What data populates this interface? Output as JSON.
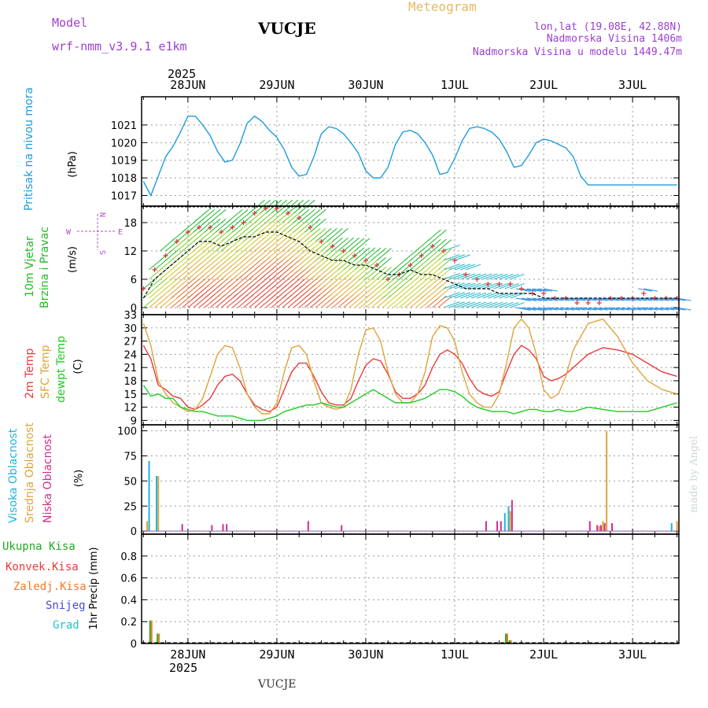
{
  "header": {
    "model_label": "Model",
    "model_name": "wrf-nmm_v3.9.1  e1km",
    "station": "VUCJE",
    "meteogram_title": "Meteogram",
    "lonlat": "lon,lat (19.08E, 42.88N)",
    "elevation": "Nadmorska Visina 1406m",
    "model_elevation": "Nadmorska Visina u modelu 1449.47m",
    "footer_station": "VUCJE",
    "credit": "made by Angel"
  },
  "colors": {
    "pressure": "#1e9be0",
    "temp2m": "#e83b3b",
    "sfc": "#e0a33a",
    "dewpt": "#22cc22",
    "high_cloud": "#1eb4e0",
    "mid_cloud": "#e0a33a",
    "low_cloud": "#d42c8a",
    "total_precip": "#22aa22",
    "conv_precip": "#e83b3b",
    "freezing": "#f07a2a",
    "snow": "#4848d8",
    "hail": "#22c4c4",
    "model": "#9b3fd0",
    "meteogram": "#e8b860",
    "wind_label": "#22bb22",
    "compass": "#b050d0"
  },
  "chart_data": [
    {
      "panel": "pressure",
      "type": "line",
      "label": "Pritisak na nivou mora",
      "unit": "(hPa)",
      "ylim": [
        1016.4,
        1022.6
      ],
      "yticks": [
        1017,
        1018,
        1019,
        1020,
        1021
      ],
      "x": [
        0,
        2,
        4,
        6,
        8,
        10,
        12,
        14,
        16,
        18,
        20,
        22,
        24,
        26,
        28,
        30,
        32,
        34,
        36,
        38,
        40,
        42,
        44,
        46,
        48,
        50,
        52,
        54,
        56,
        58,
        60,
        62,
        64,
        66,
        68,
        70,
        72,
        74,
        76,
        78,
        80,
        82,
        84,
        86,
        88,
        90,
        92,
        94,
        96,
        98,
        100,
        102,
        104,
        106,
        108,
        110,
        112,
        114,
        116,
        118,
        120,
        122,
        124,
        126,
        128,
        130,
        132,
        134,
        136,
        138,
        140,
        142,
        144
      ],
      "series": [
        {
          "values": [
            1017.8,
            1017.0,
            1018.1,
            1019.2,
            1019.8,
            1020.6,
            1021.5,
            1021.5,
            1021.0,
            1020.4,
            1019.5,
            1018.9,
            1019.0,
            1019.9,
            1021.1,
            1021.5,
            1021.2,
            1020.7,
            1020.3,
            1019.6,
            1018.6,
            1018.1,
            1018.2,
            1019.2,
            1020.5,
            1020.9,
            1020.8,
            1020.5,
            1020.0,
            1019.4,
            1018.4,
            1018.0,
            1018.0,
            1018.6,
            1019.9,
            1020.6,
            1020.7,
            1020.5,
            1020.0,
            1019.3,
            1018.2,
            1018.3,
            1019.1,
            1020.1,
            1020.8,
            1020.9,
            1020.8,
            1020.6,
            1020.2,
            1019.5,
            1018.6,
            1018.7,
            1019.3,
            1020.0,
            1020.2,
            1020.1,
            1019.9,
            1019.7,
            1019.2,
            1018.1,
            1017.6,
            1017.6,
            1017.6,
            1017.6,
            1017.6,
            1017.6,
            1017.6,
            1017.6,
            1017.6,
            1017.6,
            1017.6,
            1017.6,
            1017.6
          ]
        }
      ]
    },
    {
      "panel": "wind",
      "type": "line",
      "label": "10m Vjetar",
      "label2": "Brzina i Pravac",
      "unit": "(m/s)",
      "compass": {
        "N": "N",
        "S": "S",
        "E": "E",
        "W": "W"
      },
      "ylim": [
        -1.5,
        21.5
      ],
      "yticks": [
        0,
        6,
        12,
        18
      ],
      "x": [
        0,
        3,
        6,
        9,
        12,
        15,
        18,
        21,
        24,
        27,
        30,
        33,
        36,
        39,
        42,
        45,
        48,
        51,
        54,
        57,
        60,
        63,
        66,
        69,
        72,
        75,
        78,
        81,
        84,
        87,
        90,
        93,
        96,
        99,
        102,
        105,
        108,
        111,
        114,
        117,
        120,
        123,
        126,
        129,
        132,
        135,
        138,
        141,
        144
      ],
      "series": [
        {
          "name": "gust",
          "values": [
            4,
            8,
            11,
            14,
            16,
            17,
            17,
            16,
            17,
            18,
            20,
            21,
            21,
            20,
            19,
            17,
            14,
            13,
            12,
            11,
            10,
            9,
            6,
            7,
            9,
            11,
            13,
            12,
            10,
            7,
            6,
            5,
            5,
            5,
            4,
            3,
            3,
            2,
            2,
            1,
            1,
            1,
            2,
            2,
            2,
            3,
            2,
            2,
            2
          ]
        },
        {
          "name": "speed",
          "values": [
            2,
            6,
            8,
            10,
            12,
            14,
            14,
            13,
            14,
            15,
            15,
            16,
            16,
            15,
            14,
            12,
            11,
            10,
            10,
            9,
            9,
            8,
            7,
            7,
            8,
            7,
            7,
            6,
            5,
            4,
            4,
            4,
            3,
            3,
            3,
            3,
            2,
            2,
            2,
            2,
            2,
            2,
            2,
            2,
            2,
            2,
            2,
            2,
            2
          ]
        }
      ]
    },
    {
      "panel": "temperature",
      "type": "line",
      "labels": [
        "2m Temp",
        "SFC Temp",
        "dewpt Temp"
      ],
      "unit": "(C)",
      "ylim": [
        8,
        33
      ],
      "yticks": [
        9,
        12,
        15,
        18,
        21,
        24,
        27,
        30,
        33
      ],
      "x": [
        0,
        2,
        4,
        6,
        8,
        10,
        12,
        14,
        16,
        18,
        20,
        22,
        24,
        26,
        28,
        30,
        32,
        34,
        36,
        38,
        40,
        42,
        44,
        46,
        48,
        50,
        52,
        54,
        56,
        58,
        60,
        62,
        64,
        66,
        68,
        70,
        72,
        74,
        76,
        78,
        80,
        82,
        84,
        86,
        88,
        90,
        92,
        94,
        96,
        98,
        100,
        102,
        104,
        106,
        108,
        110,
        112,
        114,
        116,
        120,
        124,
        128,
        132,
        136,
        140,
        144
      ],
      "series": [
        {
          "name": "2m Temp",
          "values": [
            26,
            23,
            17,
            16,
            14.5,
            14,
            12,
            11.5,
            12.5,
            14,
            17,
            19,
            19.5,
            18,
            15,
            12.5,
            11.5,
            11,
            12,
            16,
            20,
            22,
            22,
            19,
            15.5,
            13,
            12.5,
            12.5,
            14,
            18,
            21.5,
            23,
            22.5,
            19.5,
            15.5,
            14,
            14,
            15,
            17,
            21,
            24,
            25,
            24,
            22,
            18.5,
            16,
            15,
            14.5,
            15.5,
            20,
            24,
            26,
            25,
            23,
            19,
            18,
            18.5,
            19.5,
            21,
            24,
            25.5,
            25,
            24,
            22,
            20,
            19
          ]
        },
        {
          "name": "SFC Temp",
          "values": [
            31,
            26,
            18,
            15,
            13,
            12,
            11,
            11.5,
            14,
            19,
            24,
            26,
            25.5,
            21,
            15,
            12,
            10.5,
            10.5,
            13,
            20,
            25.5,
            26,
            24,
            18,
            13,
            12,
            11.5,
            12,
            16,
            24,
            29.5,
            30,
            27,
            20,
            15,
            13,
            13,
            15,
            20,
            28,
            30.5,
            30,
            27,
            20,
            15,
            13,
            12,
            12,
            15,
            22,
            30,
            32,
            30,
            24,
            16,
            14,
            15,
            19,
            25,
            31,
            32,
            28,
            22,
            18,
            16,
            15
          ]
        },
        {
          "name": "dewpt Temp",
          "values": [
            17,
            14.5,
            15,
            14,
            14,
            12,
            11.5,
            11,
            11,
            10.5,
            10,
            10,
            10,
            9.5,
            9,
            9,
            9,
            9.5,
            10,
            11,
            11.5,
            12,
            12.5,
            12.5,
            13,
            12.5,
            12,
            12,
            13,
            14,
            15,
            16,
            15,
            14,
            13,
            13,
            13,
            13.5,
            14,
            15,
            16,
            16,
            15.5,
            14.5,
            13,
            12,
            11.5,
            11,
            11,
            11,
            10.5,
            11,
            11.5,
            11.5,
            11,
            11,
            11.5,
            11,
            11,
            12,
            11.5,
            11,
            11,
            11,
            12,
            13
          ]
        }
      ]
    },
    {
      "panel": "cloud",
      "type": "bar",
      "labels": [
        "Visoka Oblacnost",
        "Srednja Oblacnost",
        "Niska Oblacnost"
      ],
      "unit": "(%)",
      "ylim": [
        -3,
        106
      ],
      "yticks": [
        0,
        25,
        50,
        75,
        100
      ],
      "bars": [
        {
          "x": 1,
          "values": [
            0,
            10,
            0
          ]
        },
        {
          "x": 2,
          "values": [
            70,
            0,
            0
          ]
        },
        {
          "x": 4,
          "values": [
            55,
            55,
            0
          ]
        },
        {
          "x": 10,
          "values": [
            0,
            0,
            7
          ]
        },
        {
          "x": 18,
          "values": [
            0,
            0,
            6
          ]
        },
        {
          "x": 21,
          "values": [
            0,
            0,
            7
          ]
        },
        {
          "x": 22,
          "values": [
            0,
            0,
            7
          ]
        },
        {
          "x": 44,
          "values": [
            0,
            0,
            10
          ]
        },
        {
          "x": 53,
          "values": [
            0,
            0,
            6
          ]
        },
        {
          "x": 92,
          "values": [
            0,
            0,
            10
          ]
        },
        {
          "x": 95,
          "values": [
            0,
            0,
            10
          ]
        },
        {
          "x": 96,
          "values": [
            0,
            0,
            10
          ]
        },
        {
          "x": 98,
          "values": [
            18,
            0,
            0
          ]
        },
        {
          "x": 99,
          "values": [
            25,
            20,
            31
          ]
        },
        {
          "x": 120,
          "values": [
            0,
            0,
            10
          ]
        },
        {
          "x": 122,
          "values": [
            0,
            0,
            6
          ]
        },
        {
          "x": 123,
          "values": [
            0,
            5,
            6
          ]
        },
        {
          "x": 124,
          "values": [
            0,
            10,
            8
          ]
        },
        {
          "x": 125,
          "values": [
            0,
            100,
            0
          ]
        },
        {
          "x": 126,
          "values": [
            0,
            0,
            8
          ]
        },
        {
          "x": 143,
          "values": [
            8,
            0,
            0
          ]
        },
        {
          "x": 144,
          "values": [
            0,
            10,
            0
          ]
        }
      ]
    },
    {
      "panel": "precip",
      "type": "bar",
      "labels": [
        "Ukupna  Kisa",
        "Konvek.Kisa",
        "Zaledj.Kisa",
        "Snijeg",
        "Grad"
      ],
      "unit": "1hr Precip (mm)",
      "ylim": [
        0,
        1.0
      ],
      "yticks": [
        0,
        0.2,
        0.4,
        0.6,
        0.8
      ],
      "bars": [
        {
          "x": 2,
          "total": 0.21,
          "conv": 0.21
        },
        {
          "x": 4,
          "total": 0.09,
          "conv": 0.09
        },
        {
          "x": 98,
          "total": 0.09,
          "conv": 0.09
        },
        {
          "x": 99,
          "total": 0.03,
          "conv": 0.03
        }
      ]
    }
  ],
  "time_axis": {
    "year": "2025",
    "x_min": -0.5,
    "x_max": 144.5,
    "days": [
      {
        "label": "28JUN",
        "x": 12
      },
      {
        "label": "29JUN",
        "x": 36
      },
      {
        "label": "30JUN",
        "x": 60
      },
      {
        "label": "1JUL",
        "x": 84
      },
      {
        "label": "2JUL",
        "x": 108
      },
      {
        "label": "3JUL",
        "x": 132
      }
    ]
  }
}
